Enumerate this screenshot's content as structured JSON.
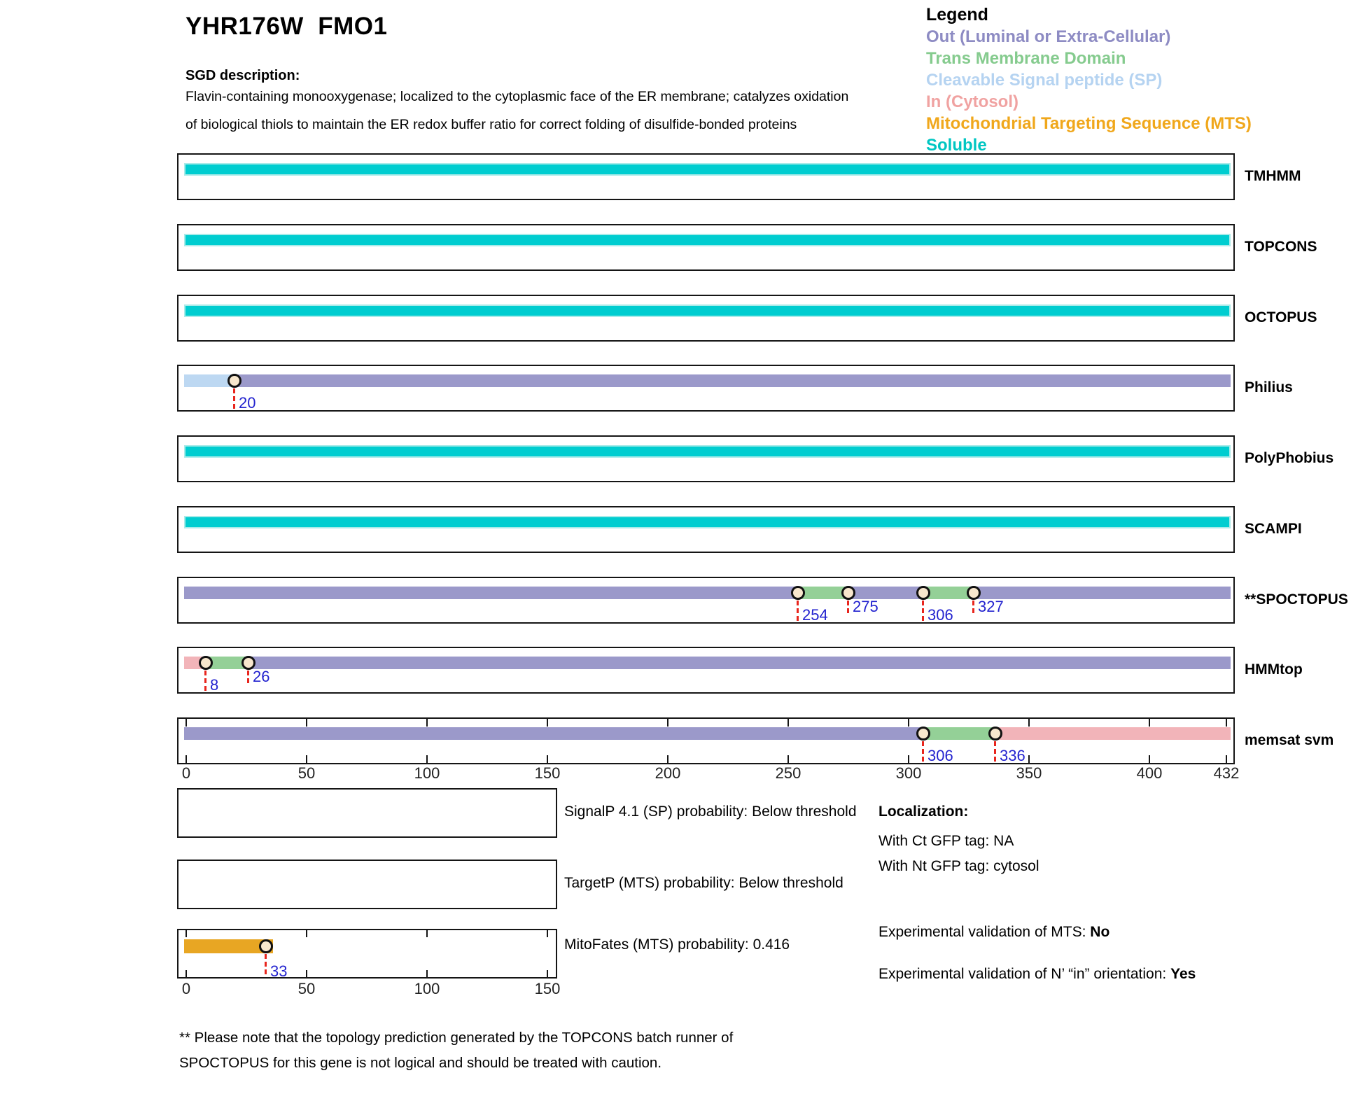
{
  "header": {
    "title": "YHR176W  FMO1",
    "sgd_heading": "SGD description:",
    "description_lines": [
      "Flavin-containing monooxygenase; localized to the cytoplasmic face of the ER membrane; catalyzes oxidation",
      "of biological thiols to maintain the ER redox buffer ratio for correct folding of disulfide-bonded proteins"
    ]
  },
  "legend": {
    "title": "Legend",
    "items": [
      {
        "key": "out",
        "label": "Out (Luminal or Extra-Cellular)",
        "color": "#8d8bc3"
      },
      {
        "key": "tm",
        "label": "Trans Membrane Domain",
        "color": "#85cb8e"
      },
      {
        "key": "sp",
        "label": "Cleavable Signal peptide (SP)",
        "color": "#b5d3f1"
      },
      {
        "key": "in",
        "label": "In (Cytosol)",
        "color": "#f0a2a1"
      },
      {
        "key": "mts",
        "label": "Mitochondrial Targeting Sequence (MTS)",
        "color": "#f0a71b"
      },
      {
        "key": "soluble",
        "label": "Soluble",
        "color": "#00c6c2"
      }
    ]
  },
  "chart_data": {
    "type": "protein-topology-tracks",
    "title": "YHR176W FMO1 topology predictions",
    "sequence_length": 432,
    "xlim": [
      0,
      432
    ],
    "axis_ticks": [
      0,
      50,
      100,
      150,
      200,
      250,
      300,
      350,
      400,
      432
    ],
    "segment_colors": {
      "out": "#9b99ca",
      "tm": "#94d097",
      "sp": "#bdd8f2",
      "in": "#f2b4b9",
      "mts": "#e8a623",
      "soluble": "#00cdd0"
    },
    "marker_style": {
      "line_color": "#e8251d",
      "label_color": "#2323cf",
      "circle_fill": "#f8e7cd",
      "circle_border": "#111111"
    },
    "tracks": [
      {
        "label": "TMHMM",
        "segments": [
          {
            "start": 0,
            "end": 432,
            "type": "soluble"
          }
        ],
        "markers": []
      },
      {
        "label": "TOPCONS",
        "segments": [
          {
            "start": 0,
            "end": 432,
            "type": "soluble"
          }
        ],
        "markers": []
      },
      {
        "label": "OCTOPUS",
        "segments": [
          {
            "start": 0,
            "end": 432,
            "type": "soluble"
          }
        ],
        "markers": []
      },
      {
        "label": "Philius",
        "segments": [
          {
            "start": 0,
            "end": 20,
            "type": "sp"
          },
          {
            "start": 20,
            "end": 432,
            "type": "out"
          }
        ],
        "markers": [
          {
            "pos": 20,
            "label": "20",
            "drop": "long"
          }
        ]
      },
      {
        "label": "PolyPhobius",
        "segments": [
          {
            "start": 0,
            "end": 432,
            "type": "soluble"
          }
        ],
        "markers": []
      },
      {
        "label": "SCAMPI",
        "segments": [
          {
            "start": 0,
            "end": 432,
            "type": "soluble"
          }
        ],
        "markers": []
      },
      {
        "label": "**SPOCTOPUS",
        "segments": [
          {
            "start": 0,
            "end": 254,
            "type": "out"
          },
          {
            "start": 254,
            "end": 275,
            "type": "tm"
          },
          {
            "start": 275,
            "end": 306,
            "type": "out"
          },
          {
            "start": 306,
            "end": 327,
            "type": "tm"
          },
          {
            "start": 327,
            "end": 432,
            "type": "out"
          }
        ],
        "markers": [
          {
            "pos": 254,
            "label": "254",
            "drop": "long"
          },
          {
            "pos": 275,
            "label": "275",
            "drop": "short"
          },
          {
            "pos": 306,
            "label": "306",
            "drop": "long"
          },
          {
            "pos": 327,
            "label": "327",
            "drop": "short"
          }
        ]
      },
      {
        "label": "HMMtop",
        "segments": [
          {
            "start": 0,
            "end": 8,
            "type": "in"
          },
          {
            "start": 8,
            "end": 26,
            "type": "tm"
          },
          {
            "start": 26,
            "end": 432,
            "type": "out"
          }
        ],
        "markers": [
          {
            "pos": 8,
            "label": "8",
            "drop": "long"
          },
          {
            "pos": 26,
            "label": "26",
            "drop": "short"
          }
        ]
      },
      {
        "label": "memsat svm",
        "segments": [
          {
            "start": 0,
            "end": 306,
            "type": "out"
          },
          {
            "start": 306,
            "end": 336,
            "type": "tm"
          },
          {
            "start": 336,
            "end": 432,
            "type": "in"
          }
        ],
        "markers": [
          {
            "pos": 306,
            "label": "306",
            "drop": "long"
          },
          {
            "pos": 336,
            "label": "336",
            "drop": "long"
          }
        ],
        "edge_ticks": true,
        "show_axis": true
      }
    ]
  },
  "probability_plots": [
    {
      "name": "signalp",
      "caption": "SignalP 4.1 (SP) probability: Below threshold",
      "bar": null,
      "markers": [],
      "axis_ticks": null
    },
    {
      "name": "targetp",
      "caption": "TargetP (MTS) probability: Below threshold",
      "bar": null,
      "markers": [],
      "axis_ticks": null
    },
    {
      "name": "mitofates",
      "caption": "MitoFates (MTS) probability: 0.416",
      "bar": {
        "start": 0,
        "end": 36,
        "type": "mts"
      },
      "markers": [
        {
          "pos": 33,
          "label": "33",
          "drop": "long"
        }
      ],
      "axis_ticks": [
        0,
        50,
        100,
        150
      ]
    }
  ],
  "localization": {
    "heading": "Localization:",
    "ct_line": "With Ct GFP tag: NA",
    "nt_line": "With Nt GFP tag: cytosol",
    "mts_prefix": "Experimental validation of MTS: ",
    "mts_value": "No",
    "orientation_prefix": "Experimental validation of N’ “in” orientation: ",
    "orientation_value": "Yes"
  },
  "footnote_lines": [
    "** Please note that the topology prediction generated by the TOPCONS batch runner of",
    "SPOCTOPUS for this gene is not logical and should be treated with caution."
  ]
}
